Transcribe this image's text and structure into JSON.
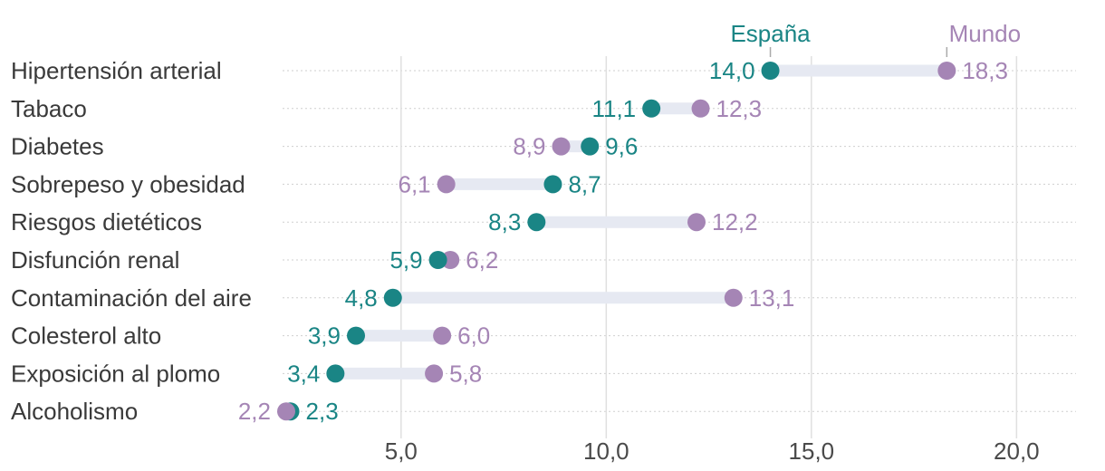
{
  "chart_data": {
    "type": "dumbbell",
    "categories": [
      "Hipertensión arterial",
      "Tabaco",
      "Diabetes",
      "Sobrepeso y obesidad",
      "Riesgos dietéticos",
      "Disfunción renal",
      "Contaminación del aire",
      "Colesterol alto",
      "Exposición al plomo",
      "Alcoholismo"
    ],
    "series": [
      {
        "name": "España",
        "color": "#1a8585",
        "values": [
          14.0,
          11.1,
          9.6,
          8.7,
          8.3,
          5.9,
          4.8,
          3.9,
          3.4,
          2.3
        ],
        "labels": [
          "14,0",
          "11,1",
          "9,6",
          "8,7",
          "8,3",
          "5,9",
          "4,8",
          "3,9",
          "3,4",
          "2,3"
        ]
      },
      {
        "name": "Mundo",
        "color": "#a585b5",
        "values": [
          18.3,
          12.3,
          8.9,
          6.1,
          12.2,
          6.2,
          13.1,
          6.0,
          5.8,
          2.2
        ],
        "labels": [
          "18,3",
          "12,3",
          "8,9",
          "6,1",
          "12,2",
          "6,2",
          "13,1",
          "6,0",
          "5,8",
          "2,2"
        ]
      }
    ],
    "xlim": [
      1.0,
      21.0
    ],
    "xticks": [
      5,
      10,
      15,
      20
    ],
    "xtick_labels": [
      "5,0",
      "10,0",
      "15,0",
      "20,0"
    ],
    "connector_color": "#e6e9f2",
    "grid": true
  }
}
